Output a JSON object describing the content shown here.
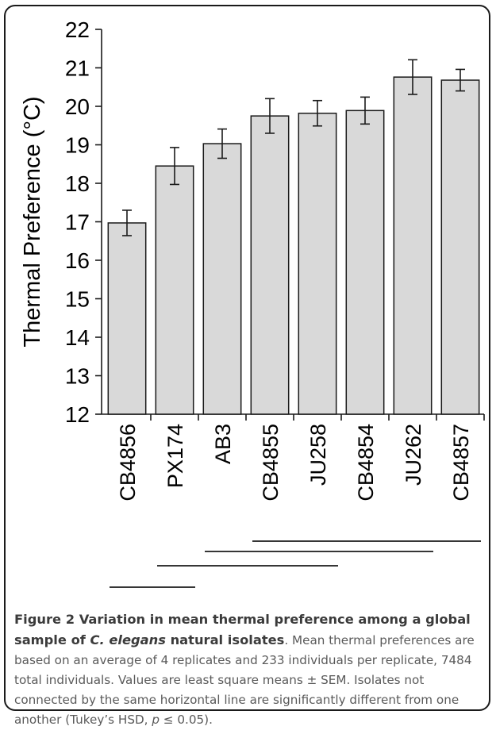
{
  "chart_data": {
    "type": "bar",
    "title": "",
    "xlabel": "",
    "ylabel": "Thermal Preference (°C)",
    "ylim": [
      12,
      22
    ],
    "yticks": [
      12,
      13,
      14,
      15,
      16,
      17,
      18,
      19,
      20,
      21,
      22
    ],
    "grid": false,
    "categories": [
      "CB4856",
      "PX174",
      "AB3",
      "CB4855",
      "JU258",
      "CB4854",
      "JU262",
      "CB4857"
    ],
    "values": [
      16.97,
      18.45,
      19.03,
      19.75,
      19.82,
      19.89,
      20.76,
      20.68
    ],
    "errors": [
      0.33,
      0.48,
      0.38,
      0.45,
      0.33,
      0.35,
      0.45,
      0.28
    ],
    "bar_color": "#d9d9d9",
    "bar_edge_color": "#1a1a1a",
    "significance_groups": [
      {
        "from": "CB4856",
        "to": "PX174"
      },
      {
        "from": "PX174",
        "to": "JU258"
      },
      {
        "from": "AB3",
        "to": "JU262"
      },
      {
        "from": "CB4855",
        "to": "CB4857"
      }
    ]
  },
  "caption": {
    "figure_label": "Figure 2",
    "title_start": "Variation in mean thermal preference among a global sample of ",
    "title_species": "C. elegans",
    "title_end": " natural isolates",
    "body_start": ". Mean thermal preferences are based on an average of 4 replicates and 233 individuals per replicate, 7484 total individuals. Values are least square means ± SEM. Isolates not connected by the same horizontal line are significantly different from one another (Tukey’s HSD, ",
    "body_p": "p",
    "body_end": " ≤ 0.05)."
  }
}
